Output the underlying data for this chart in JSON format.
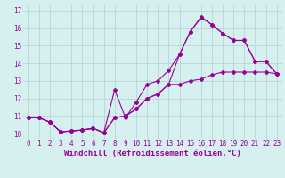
{
  "xlabel": "Windchill (Refroidissement éolien,°C)",
  "bg_color": "#d6f0f0",
  "grid_color": "#b8dada",
  "line_color": "#990099",
  "xlim": [
    -0.5,
    23.5
  ],
  "ylim": [
    9.7,
    17.3
  ],
  "xticks": [
    0,
    1,
    2,
    3,
    4,
    5,
    6,
    7,
    8,
    9,
    10,
    11,
    12,
    13,
    14,
    15,
    16,
    17,
    18,
    19,
    20,
    21,
    22,
    23
  ],
  "yticks": [
    10,
    11,
    12,
    13,
    14,
    15,
    16,
    17
  ],
  "line1_x": [
    0,
    1,
    2,
    3,
    4,
    5,
    6,
    7,
    8,
    9,
    10,
    11,
    12,
    13,
    14,
    15,
    16,
    17,
    18,
    19,
    20,
    21,
    22,
    23
  ],
  "line1_y": [
    10.9,
    10.9,
    10.65,
    10.1,
    10.15,
    10.2,
    10.3,
    10.05,
    10.9,
    11.0,
    11.4,
    12.0,
    12.25,
    12.8,
    12.8,
    13.0,
    13.1,
    13.35,
    13.5,
    13.5,
    13.5,
    13.5,
    13.5,
    13.4
  ],
  "line2_x": [
    0,
    1,
    2,
    3,
    4,
    5,
    6,
    7,
    8,
    9,
    10,
    11,
    12,
    13,
    14,
    15,
    16,
    17,
    18,
    19,
    20,
    21,
    22,
    23
  ],
  "line2_y": [
    10.9,
    10.9,
    10.65,
    10.1,
    10.15,
    10.2,
    10.3,
    10.05,
    12.5,
    10.9,
    11.8,
    12.8,
    13.0,
    13.6,
    14.5,
    15.8,
    16.6,
    16.2,
    15.7,
    15.3,
    15.3,
    14.1,
    14.1,
    13.4
  ],
  "line3_x": [
    0,
    1,
    2,
    3,
    4,
    5,
    6,
    7,
    8,
    9,
    10,
    11,
    12,
    13,
    14,
    15,
    16,
    17,
    18,
    19,
    20,
    21,
    22,
    23
  ],
  "line3_y": [
    10.9,
    10.9,
    10.65,
    10.1,
    10.15,
    10.2,
    10.3,
    10.05,
    10.9,
    11.0,
    11.4,
    12.0,
    12.25,
    12.8,
    14.5,
    15.8,
    16.65,
    16.2,
    15.7,
    15.3,
    15.3,
    14.1,
    14.1,
    13.4
  ],
  "marker": "D",
  "marker_size": 2.0,
  "line_width": 0.8,
  "tick_fontsize": 5.5,
  "xlabel_fontsize": 6.5
}
